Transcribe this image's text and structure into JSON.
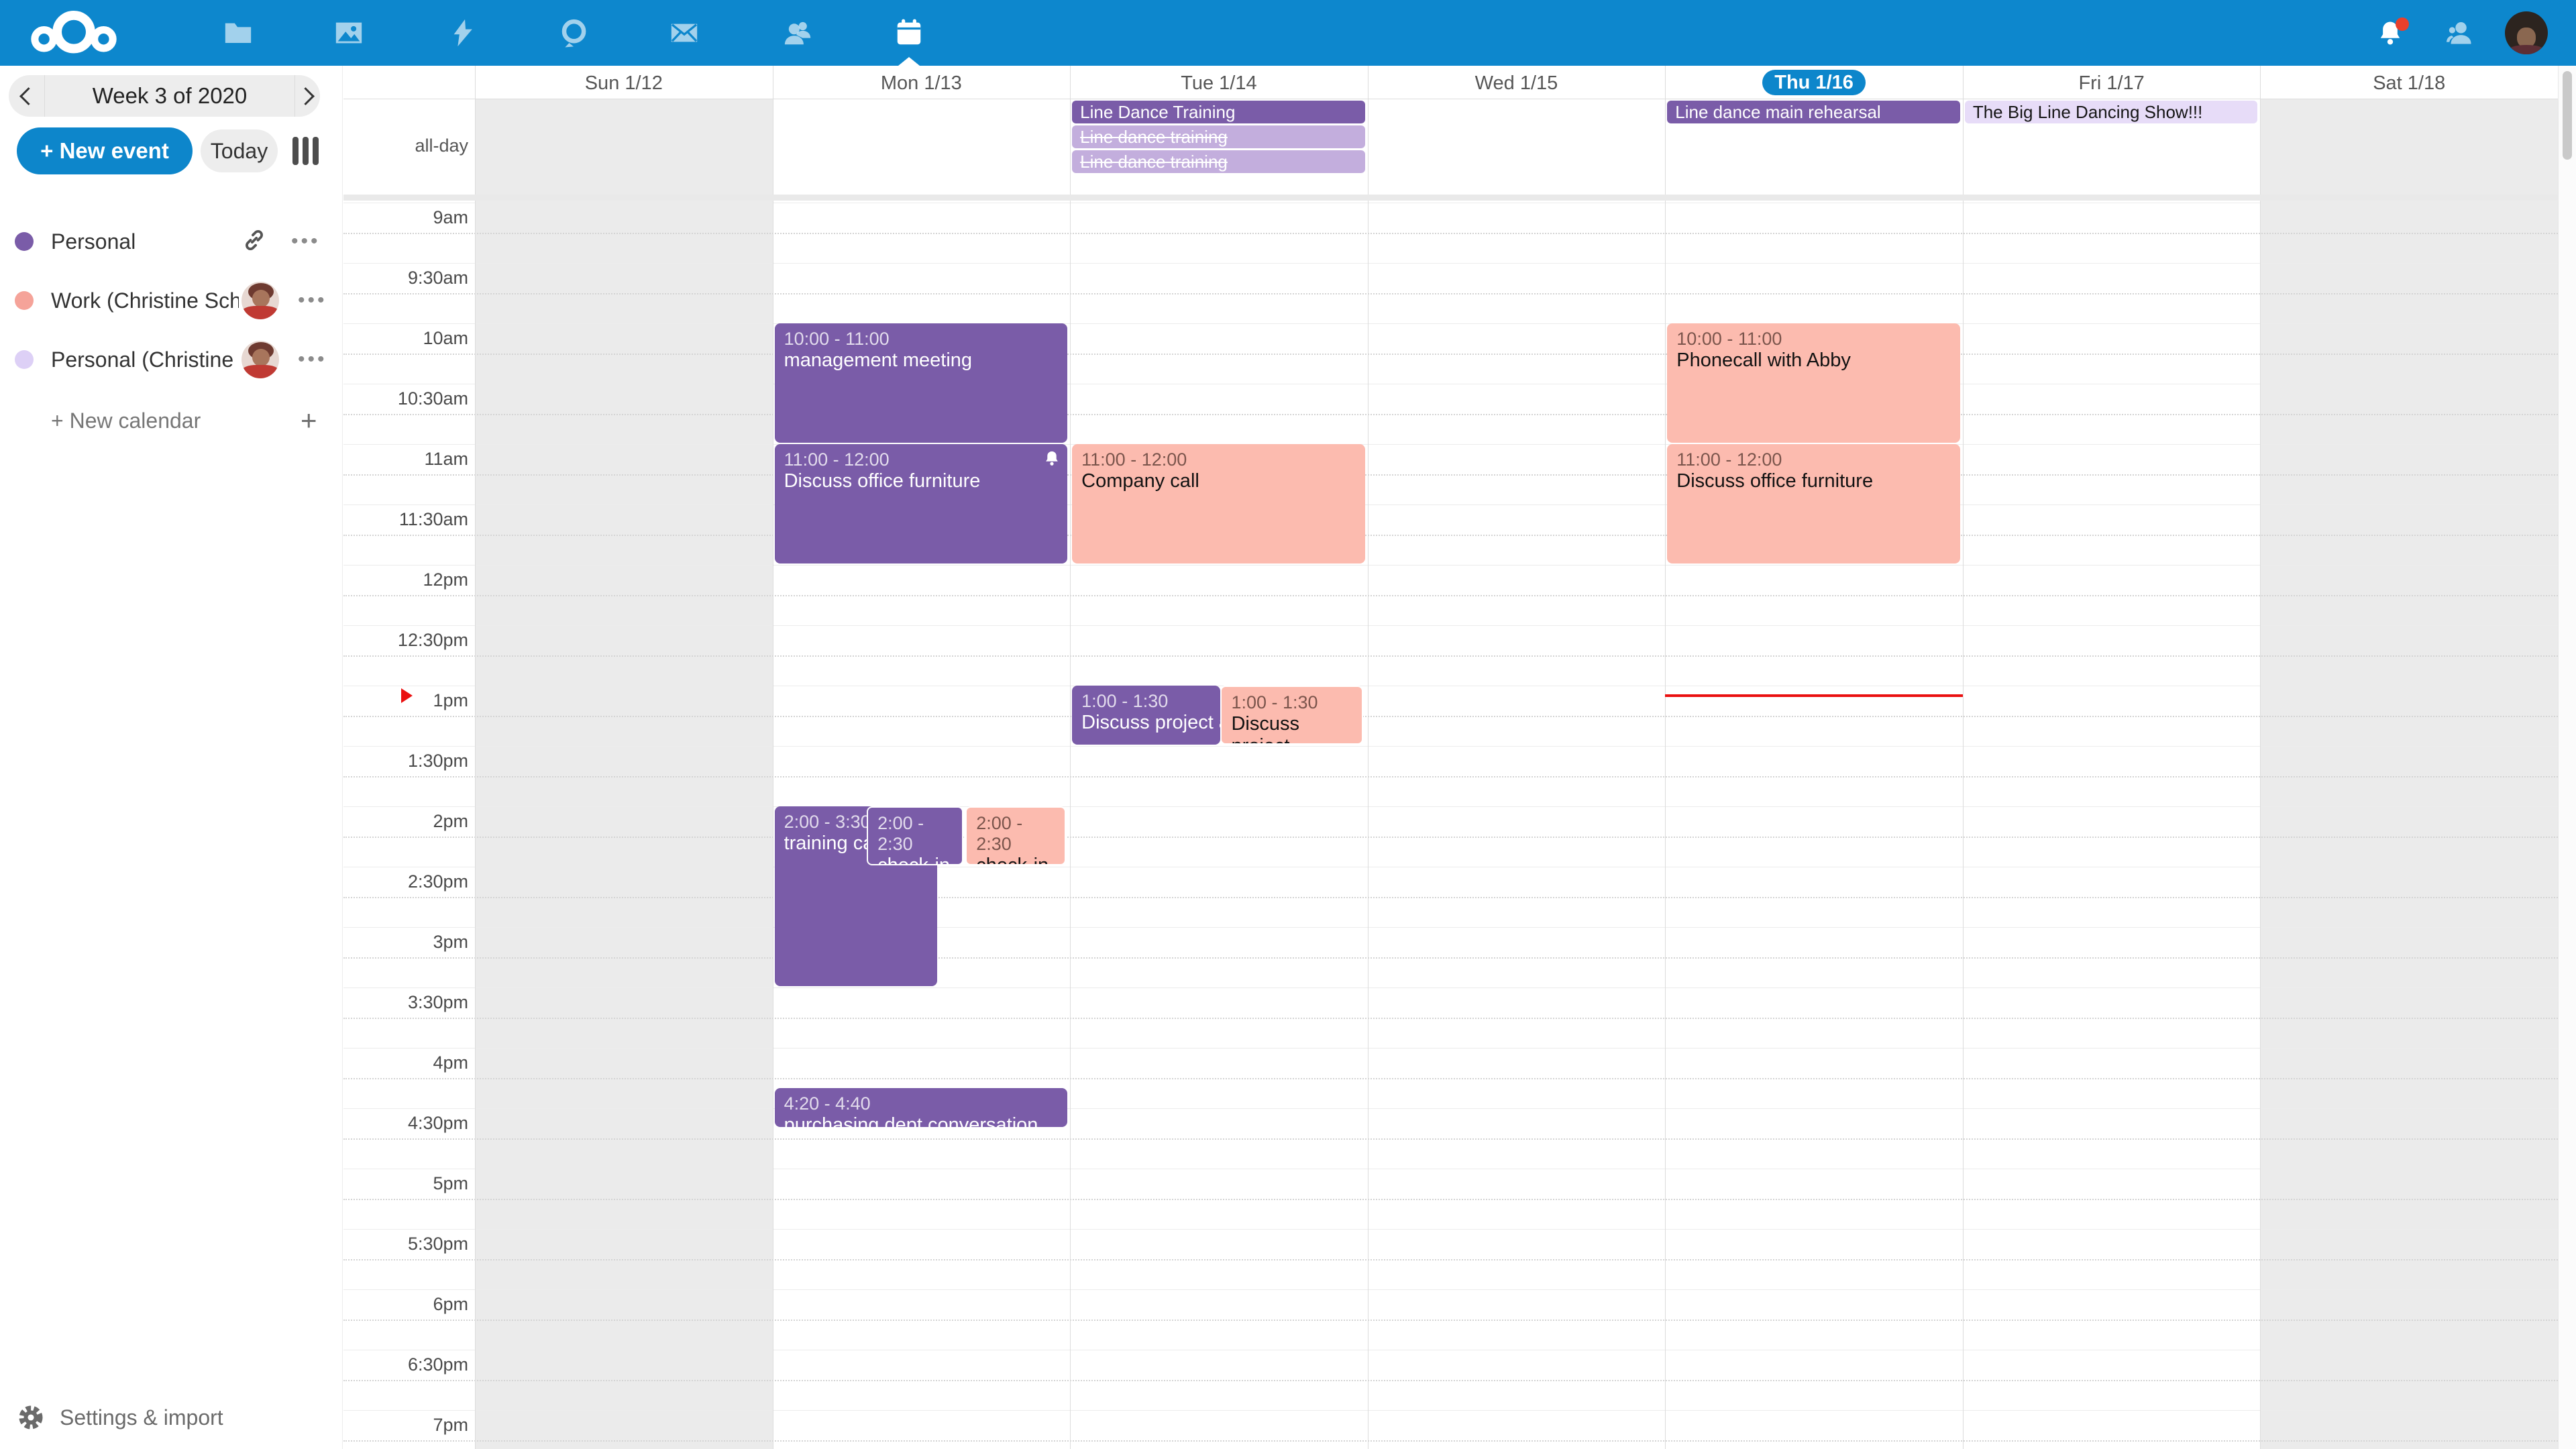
{
  "colors": {
    "topbar": "#0d87cd",
    "accent": "#0d86cb",
    "purple": "#7a5ca8",
    "salmon": "#fcbbaf",
    "lavender": "#c3aedd",
    "lavender_light": "#e7dcf8",
    "weekend": "#ebebeb",
    "now_red": "#ea1010"
  },
  "topbar": {
    "apps": [
      {
        "id": "files"
      },
      {
        "id": "photos"
      },
      {
        "id": "activity"
      },
      {
        "id": "talk"
      },
      {
        "id": "mail"
      },
      {
        "id": "contacts"
      },
      {
        "id": "calendar",
        "active": true
      }
    ],
    "right": [
      "notifications",
      "contacts-menu",
      "avatar"
    ],
    "notification_badge": true
  },
  "sidebar": {
    "week_label": "Week 3 of 2020",
    "new_event_label": "+ New event",
    "today_label": "Today",
    "calendars": [
      {
        "name": "Personal",
        "color": "#7a5ca8",
        "link_icon": true,
        "avatar": false
      },
      {
        "name": "Work (Christine Schott)",
        "color": "#f5a399",
        "link_icon": false,
        "avatar": true
      },
      {
        "name": "Personal (Christine Scho…",
        "color": "#ddd0f6",
        "link_icon": false,
        "avatar": true
      }
    ],
    "new_calendar_label": "+ New calendar",
    "settings_label": "Settings & import"
  },
  "calendar": {
    "allday_label": "all-day",
    "days": [
      {
        "label": "Sun 1/12",
        "weekend": true
      },
      {
        "label": "Mon 1/13"
      },
      {
        "label": "Tue 1/14"
      },
      {
        "label": "Wed 1/15"
      },
      {
        "label": "Thu 1/16",
        "today": true
      },
      {
        "label": "Fri 1/17"
      },
      {
        "label": "Sat 1/18",
        "weekend": true
      }
    ],
    "time_labels": [
      "9am",
      "9:30am",
      "10am",
      "10:30am",
      "11am",
      "11:30am",
      "12pm",
      "12:30pm",
      "1pm",
      "1:30pm",
      "2pm",
      "2:30pm",
      "3pm",
      "3:30pm",
      "4pm",
      "4:30pm",
      "5pm",
      "5:30pm",
      "6pm",
      "6:30pm",
      "7pm"
    ],
    "allday_events": [
      {
        "day": 2,
        "row": 0,
        "title": "Line Dance Training",
        "style": "purple"
      },
      {
        "day": 2,
        "row": 1,
        "title": "Line dance training",
        "style": "lavender-strike"
      },
      {
        "day": 2,
        "row": 2,
        "title": "Line dance training",
        "style": "lavender-strike"
      },
      {
        "day": 4,
        "row": 0,
        "title": "Line dance main rehearsal",
        "style": "purple"
      },
      {
        "day": 5,
        "row": 0,
        "title": "The Big Line Dancing Show!!!",
        "style": "lavender-light"
      }
    ],
    "events": [
      {
        "day": 1,
        "start": 600,
        "end": 660,
        "time": "10:00 - 11:00",
        "title": "management meeting",
        "style": "purple"
      },
      {
        "day": 1,
        "start": 660,
        "end": 720,
        "time": "11:00 - 12:00",
        "title": "Discuss office furniture",
        "style": "purple",
        "bell": true
      },
      {
        "day": 1,
        "start": 840,
        "end": 930,
        "time": "2:00 - 3:30",
        "title": "training call",
        "style": "purple",
        "slot": {
          "l": 0,
          "w": 0.555
        }
      },
      {
        "day": 1,
        "start": 840,
        "end": 870,
        "time": "2:00 - 2:30",
        "title": "check-in",
        "style": "purple",
        "slot": {
          "l": 0.315,
          "w": 0.33
        },
        "outline": true
      },
      {
        "day": 1,
        "start": 840,
        "end": 870,
        "time": "2:00 - 2:30",
        "title": "check-in",
        "style": "salmon",
        "slot": {
          "l": 0.652,
          "w": 0.342
        },
        "outline": true
      },
      {
        "day": 1,
        "start": 980,
        "end": 1000,
        "time": "4:20 - 4:40",
        "title": "purchasing dept conversation",
        "style": "purple"
      },
      {
        "day": 2,
        "start": 660,
        "end": 720,
        "time": "11:00 - 12:00",
        "title": "Company call",
        "style": "salmon"
      },
      {
        "day": 2,
        "start": 780,
        "end": 810,
        "time": "1:00 - 1:30",
        "title": "Discuss project announcement",
        "style": "purple",
        "slot": {
          "l": 0,
          "w": 0.505
        },
        "truncate": true
      },
      {
        "day": 2,
        "start": 780,
        "end": 810,
        "time": "1:00 - 1:30",
        "title": "Discuss project announcement",
        "style": "salmon",
        "slot": {
          "l": 0.507,
          "w": 0.487
        },
        "outline": true
      },
      {
        "day": 4,
        "start": 600,
        "end": 660,
        "time": "10:00 - 11:00",
        "title": "Phonecall with Abby",
        "style": "salmon"
      },
      {
        "day": 4,
        "start": 660,
        "end": 720,
        "time": "11:00 - 12:00",
        "title": "Discuss office furniture",
        "style": "salmon"
      }
    ],
    "now": {
      "day": 4,
      "minute": 785
    }
  }
}
